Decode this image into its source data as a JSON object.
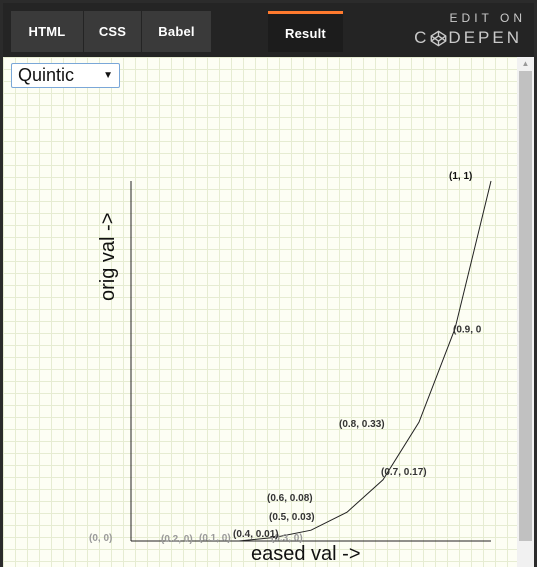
{
  "tabs": {
    "html": "HTML",
    "css": "CSS",
    "babel": "Babel",
    "result": "Result"
  },
  "brand": {
    "edit_on": "EDIT ON",
    "codepen_prefix": "C",
    "codepen_suffix": "DEPEN"
  },
  "easing_select": {
    "selected": "Quintic"
  },
  "chart_data": {
    "type": "line",
    "xlabel": "eased val ->",
    "ylabel": "orig val ->",
    "xlim": [
      0,
      1
    ],
    "ylim": [
      0,
      1
    ],
    "x": [
      0,
      0.1,
      0.2,
      0.3,
      0.4,
      0.5,
      0.6,
      0.7,
      0.8,
      0.9,
      1
    ],
    "y": [
      0,
      0,
      0,
      0,
      0.01,
      0.03,
      0.08,
      0.17,
      0.33,
      0.59,
      1
    ],
    "point_labels": [
      "(0, 0)",
      "(0.1, 0)",
      "(0.2, 0)",
      "(0.3, 0)",
      "(0.4, 0.01)",
      "(0.5, 0.03)",
      "(0.6, 0.08)",
      "(0.7, 0.17)",
      "(0.8, 0.33)",
      "(0.9, 0",
      "(1, 1)"
    ]
  },
  "colors": {
    "accent": "#ff7a2e",
    "grid_background": "#fdfef4"
  }
}
